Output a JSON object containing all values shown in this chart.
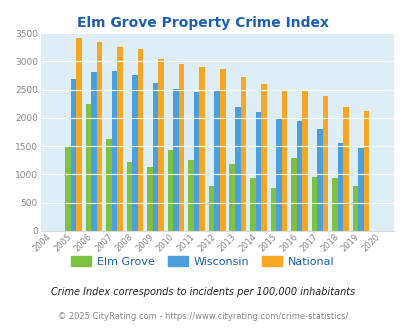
{
  "title": "Elm Grove Property Crime Index",
  "years": [
    "2004",
    "2005",
    "2006",
    "2007",
    "2008",
    "2009",
    "2010",
    "2011",
    "2012",
    "2013",
    "2014",
    "2015",
    "2016",
    "2017",
    "2018",
    "2019",
    "2020"
  ],
  "elm_grove": [
    0,
    1500,
    2250,
    1620,
    1220,
    1130,
    1430,
    1250,
    790,
    1190,
    940,
    760,
    1290,
    960,
    940,
    790,
    0
  ],
  "wisconsin": [
    0,
    2680,
    2810,
    2830,
    2750,
    2610,
    2510,
    2460,
    2480,
    2190,
    2100,
    1990,
    1950,
    1800,
    1560,
    1470,
    0
  ],
  "national": [
    0,
    3420,
    3340,
    3260,
    3210,
    3040,
    2950,
    2900,
    2860,
    2720,
    2600,
    2490,
    2470,
    2380,
    2200,
    2120,
    0
  ],
  "bar_width": 0.27,
  "elm_grove_color": "#7dc242",
  "wisconsin_color": "#4d9fdb",
  "national_color": "#f5a623",
  "fig_bg_color": "#ffffff",
  "plot_bg_color": "#ddeef6",
  "ylim": [
    0,
    3500
  ],
  "yticks": [
    0,
    500,
    1000,
    1500,
    2000,
    2500,
    3000,
    3500
  ],
  "grid_color": "#ffffff",
  "title_color": "#1a5fb4",
  "legend_labels": [
    "Elm Grove",
    "Wisconsin",
    "National"
  ],
  "legend_text_color": "#1a5fb4",
  "footnote1": "Crime Index corresponds to incidents per 100,000 inhabitants",
  "footnote2": "© 2025 CityRating.com - https://www.cityrating.com/crime-statistics/",
  "footnote1_color": "#222222",
  "footnote2_color": "#888888",
  "footnote2_url_color": "#1a7fbf",
  "tick_color": "#888888"
}
